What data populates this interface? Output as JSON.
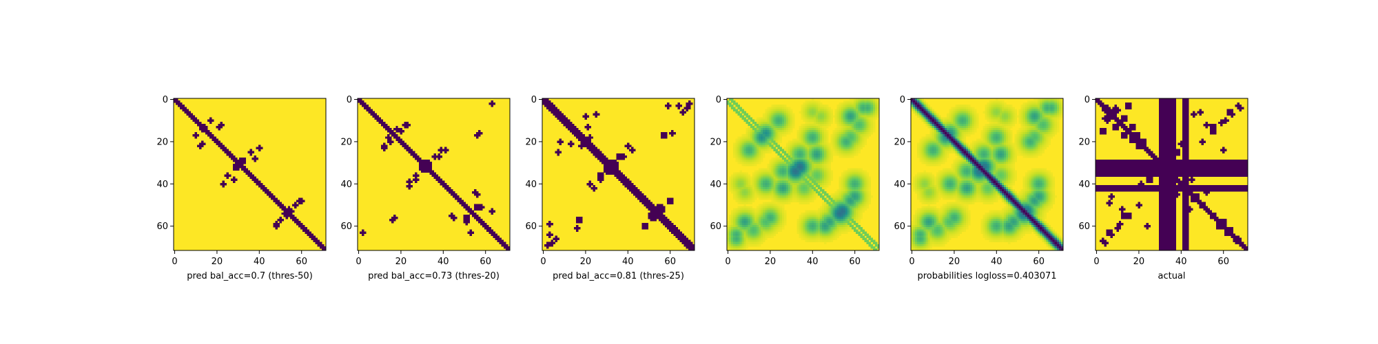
{
  "chart_data": [
    {
      "type": "heatmap",
      "kind": "binary",
      "title": "",
      "xlabel": "pred bal_acc=0.7 (thres-50)",
      "ylabel": "",
      "size": 72,
      "xlim": [
        0,
        72
      ],
      "ylim": [
        72,
        0
      ],
      "xticks": [
        "0",
        "20",
        "40",
        "60"
      ],
      "yticks": [
        "0",
        "20",
        "40",
        "60"
      ],
      "diag_halfwidth": 1.5,
      "bands": [],
      "blobs": [
        {
          "r": 12,
          "c": 22,
          "rad": 1.2
        },
        {
          "r": 13,
          "c": 14,
          "rad": 1.1
        },
        {
          "r": 17,
          "c": 10,
          "rad": 1.0
        },
        {
          "r": 21,
          "c": 13,
          "rad": 1.0
        },
        {
          "r": 32,
          "c": 29,
          "rad": 1.8
        },
        {
          "r": 25,
          "c": 36,
          "rad": 1.0
        },
        {
          "r": 28,
          "c": 38,
          "rad": 1.0
        },
        {
          "r": 36,
          "c": 25,
          "rad": 1.1
        },
        {
          "r": 40,
          "c": 23,
          "rad": 1.0
        },
        {
          "r": 53,
          "c": 54,
          "rad": 2.0
        },
        {
          "r": 48,
          "c": 59,
          "rad": 1.0
        },
        {
          "r": 57,
          "c": 50,
          "rad": 1.0
        },
        {
          "r": 60,
          "c": 48,
          "rad": 1.0
        }
      ]
    },
    {
      "type": "heatmap",
      "kind": "binary",
      "title": "",
      "xlabel": "pred bal_acc=0.73 (thres-20)",
      "ylabel": "",
      "size": 72,
      "xlim": [
        0,
        72
      ],
      "ylim": [
        72,
        0
      ],
      "xticks": [
        "0",
        "20",
        "40",
        "60"
      ],
      "yticks": [
        "0",
        "20",
        "40",
        "60"
      ],
      "diag_halfwidth": 1.5,
      "bands": [],
      "blobs": [
        {
          "r": 15,
          "c": 20,
          "rad": 1.0
        },
        {
          "r": 12,
          "c": 23,
          "rad": 1.0
        },
        {
          "r": 18,
          "c": 14,
          "rad": 1.2
        },
        {
          "r": 22,
          "c": 12,
          "rad": 1.0
        },
        {
          "r": 31,
          "c": 32,
          "rad": 2.6
        },
        {
          "r": 27,
          "c": 38,
          "rad": 1.0
        },
        {
          "r": 24,
          "c": 41,
          "rad": 1.0
        },
        {
          "r": 36,
          "c": 27,
          "rad": 1.2
        },
        {
          "r": 39,
          "c": 24,
          "rad": 1.0
        },
        {
          "r": 16,
          "c": 57,
          "rad": 1.0
        },
        {
          "r": 44,
          "c": 55,
          "rad": 1.2
        },
        {
          "r": 51,
          "c": 56,
          "rad": 1.5
        },
        {
          "r": 56,
          "c": 45,
          "rad": 1.1
        },
        {
          "r": 58,
          "c": 51,
          "rad": 1.0
        },
        {
          "r": 63,
          "c": 53,
          "rad": 1.0
        },
        {
          "r": 56,
          "c": 17,
          "rad": 1.0
        },
        {
          "r": 63,
          "c": 2,
          "rad": 1.0
        }
      ]
    },
    {
      "type": "heatmap",
      "kind": "binary",
      "title": "",
      "xlabel": "pred bal_acc=0.81 (thres-25)",
      "ylabel": "",
      "size": 72,
      "xlim": [
        0,
        72
      ],
      "ylim": [
        72,
        0
      ],
      "xticks": [
        "0",
        "20",
        "40",
        "60"
      ],
      "yticks": [
        "0",
        "20",
        "40",
        "60"
      ],
      "diag_halfwidth": 2.5,
      "bands": [],
      "blobs": [
        {
          "r": 8,
          "c": 20,
          "rad": 1.4
        },
        {
          "r": 7,
          "c": 25,
          "rad": 1.0
        },
        {
          "r": 16,
          "c": 16,
          "rad": 2.2
        },
        {
          "r": 18,
          "c": 22,
          "rad": 1.3
        },
        {
          "r": 21,
          "c": 13,
          "rad": 1.1
        },
        {
          "r": 31,
          "c": 33,
          "rad": 2.4
        },
        {
          "r": 27,
          "c": 38,
          "rad": 1.3
        },
        {
          "r": 24,
          "c": 42,
          "rad": 1.2
        },
        {
          "r": 36,
          "c": 27,
          "rad": 1.5
        },
        {
          "r": 40,
          "c": 22,
          "rad": 1.3
        },
        {
          "r": 3,
          "c": 64,
          "rad": 1.2
        },
        {
          "r": 2,
          "c": 69,
          "rad": 1.0
        },
        {
          "r": 17,
          "c": 57,
          "rad": 1.4
        },
        {
          "r": 48,
          "c": 60,
          "rad": 1.5
        },
        {
          "r": 52,
          "c": 56,
          "rad": 1.8
        },
        {
          "r": 55,
          "c": 51,
          "rad": 1.5
        },
        {
          "r": 57,
          "c": 17,
          "rad": 1.8
        },
        {
          "r": 61,
          "c": 16,
          "rad": 1.0
        },
        {
          "r": 59,
          "c": 3,
          "rad": 1.3
        },
        {
          "r": 68,
          "c": 4,
          "rad": 1.0
        },
        {
          "r": 66,
          "c": 6,
          "rad": 1.0
        }
      ]
    },
    {
      "type": "heatmap",
      "kind": "continuous",
      "title": "",
      "xlabel": "",
      "ylabel": "",
      "size": 72,
      "xlim": [
        0,
        72
      ],
      "ylim": [
        72,
        0
      ],
      "xticks": [
        "0",
        "20",
        "40",
        "60"
      ],
      "yticks": [
        "0",
        "20",
        "40",
        "60"
      ],
      "offset_lines": [
        -1.5,
        1.5
      ],
      "offset_strength": 0.55,
      "diag_halfwidth": 0,
      "spots": [
        {
          "r": 16,
          "c": 18,
          "rad": 3.5,
          "v": 0.6
        },
        {
          "r": 10,
          "c": 24,
          "rad": 3.5,
          "v": 0.5
        },
        {
          "r": 32,
          "c": 34,
          "rad": 4.0,
          "v": 0.7
        },
        {
          "r": 26,
          "c": 42,
          "rad": 3.5,
          "v": 0.55
        },
        {
          "r": 34,
          "c": 26,
          "rad": 3.5,
          "v": 0.5
        },
        {
          "r": 40,
          "c": 18,
          "rad": 3.5,
          "v": 0.5
        },
        {
          "r": 53,
          "c": 54,
          "rad": 4.0,
          "v": 0.7
        },
        {
          "r": 46,
          "c": 60,
          "rad": 3.5,
          "v": 0.55
        },
        {
          "r": 58,
          "c": 48,
          "rad": 3.5,
          "v": 0.55
        },
        {
          "r": 60,
          "c": 40,
          "rad": 3.5,
          "v": 0.5
        },
        {
          "r": 8,
          "c": 58,
          "rad": 3.5,
          "v": 0.55
        },
        {
          "r": 4,
          "c": 66,
          "rad": 3.0,
          "v": 0.5
        },
        {
          "r": 18,
          "c": 58,
          "rad": 3.5,
          "v": 0.45
        },
        {
          "r": 42,
          "c": 36,
          "rad": 3.5,
          "v": 0.4
        },
        {
          "r": 56,
          "c": 20,
          "rad": 3.5,
          "v": 0.5
        },
        {
          "r": 62,
          "c": 12,
          "rad": 3.5,
          "v": 0.45
        },
        {
          "r": 64,
          "c": 4,
          "rad": 3.0,
          "v": 0.5
        },
        {
          "r": 8,
          "c": 44,
          "rad": 3.0,
          "v": 0.3
        },
        {
          "r": 40,
          "c": 6,
          "rad": 3.0,
          "v": 0.3
        }
      ]
    },
    {
      "type": "heatmap",
      "kind": "continuous",
      "title": "",
      "xlabel": "probabilities logloss=0.403071",
      "ylabel": "",
      "size": 72,
      "xlim": [
        0,
        72
      ],
      "ylim": [
        72,
        0
      ],
      "xticks": [
        "0",
        "20",
        "40",
        "60"
      ],
      "yticks": [
        "0",
        "20",
        "40",
        "60"
      ],
      "offset_lines": [],
      "offset_strength": 0,
      "diag_halfwidth": 2.2,
      "spots": [
        {
          "r": 16,
          "c": 18,
          "rad": 3.5,
          "v": 0.6
        },
        {
          "r": 10,
          "c": 24,
          "rad": 3.5,
          "v": 0.5
        },
        {
          "r": 32,
          "c": 34,
          "rad": 4.0,
          "v": 0.7
        },
        {
          "r": 26,
          "c": 42,
          "rad": 3.5,
          "v": 0.55
        },
        {
          "r": 34,
          "c": 26,
          "rad": 3.5,
          "v": 0.5
        },
        {
          "r": 40,
          "c": 18,
          "rad": 3.5,
          "v": 0.5
        },
        {
          "r": 53,
          "c": 54,
          "rad": 4.0,
          "v": 0.7
        },
        {
          "r": 46,
          "c": 60,
          "rad": 3.5,
          "v": 0.55
        },
        {
          "r": 58,
          "c": 48,
          "rad": 3.5,
          "v": 0.55
        },
        {
          "r": 60,
          "c": 40,
          "rad": 3.5,
          "v": 0.5
        },
        {
          "r": 8,
          "c": 58,
          "rad": 3.5,
          "v": 0.55
        },
        {
          "r": 4,
          "c": 66,
          "rad": 3.0,
          "v": 0.5
        },
        {
          "r": 18,
          "c": 58,
          "rad": 3.5,
          "v": 0.45
        },
        {
          "r": 42,
          "c": 36,
          "rad": 3.5,
          "v": 0.4
        },
        {
          "r": 56,
          "c": 20,
          "rad": 3.5,
          "v": 0.5
        },
        {
          "r": 62,
          "c": 12,
          "rad": 3.5,
          "v": 0.45
        },
        {
          "r": 64,
          "c": 4,
          "rad": 3.0,
          "v": 0.5
        },
        {
          "r": 8,
          "c": 44,
          "rad": 3.0,
          "v": 0.3
        },
        {
          "r": 40,
          "c": 6,
          "rad": 3.0,
          "v": 0.3
        }
      ]
    },
    {
      "type": "heatmap",
      "kind": "binary",
      "title": "",
      "xlabel": "actual",
      "ylabel": "",
      "size": 72,
      "xlim": [
        0,
        72
      ],
      "ylim": [
        72,
        0
      ],
      "xticks": [
        "0",
        "20",
        "40",
        "60"
      ],
      "yticks": [
        "0",
        "20",
        "40",
        "60"
      ],
      "diag_halfwidth": 1.5,
      "bands": [
        {
          "axis": "col",
          "from": 30,
          "to": 37
        },
        {
          "axis": "col",
          "from": 41,
          "to": 43
        },
        {
          "axis": "row",
          "from": 29,
          "to": 36
        },
        {
          "axis": "row",
          "from": 41,
          "to": 43
        }
      ],
      "blobs": [
        {
          "r": 5,
          "c": 9,
          "rad": 2.2
        },
        {
          "r": 3,
          "c": 15,
          "rad": 1.6
        },
        {
          "r": 9,
          "c": 13,
          "rad": 1.6
        },
        {
          "r": 13,
          "c": 17,
          "rad": 1.8
        },
        {
          "r": 17,
          "c": 19,
          "rad": 1.5
        },
        {
          "r": 20,
          "c": 22,
          "rad": 1.5
        },
        {
          "r": 5,
          "c": 4,
          "rad": 1.2
        },
        {
          "r": 7,
          "c": 46,
          "rad": 1.3
        },
        {
          "r": 15,
          "c": 55,
          "rad": 1.6
        },
        {
          "r": 12,
          "c": 52,
          "rad": 1.2
        },
        {
          "r": 20,
          "c": 50,
          "rad": 1.2
        },
        {
          "r": 7,
          "c": 64,
          "rad": 1.3
        },
        {
          "r": 4,
          "c": 68,
          "rad": 1.2
        },
        {
          "r": 10,
          "c": 61,
          "rad": 1.2
        },
        {
          "r": 38,
          "c": 25,
          "rad": 1.5
        },
        {
          "r": 40,
          "c": 21,
          "rad": 1.3
        },
        {
          "r": 47,
          "c": 46,
          "rad": 1.8
        },
        {
          "r": 50,
          "c": 50,
          "rad": 1.5
        },
        {
          "r": 55,
          "c": 55,
          "rad": 1.6
        },
        {
          "r": 58,
          "c": 60,
          "rad": 1.5
        },
        {
          "r": 62,
          "c": 63,
          "rad": 1.5
        },
        {
          "r": 66,
          "c": 67,
          "rad": 1.4
        },
        {
          "r": 52,
          "c": 44,
          "rad": 1.3
        },
        {
          "r": 49,
          "c": 6,
          "rad": 1.3
        },
        {
          "r": 55,
          "c": 13,
          "rad": 1.5
        },
        {
          "r": 63,
          "c": 6,
          "rad": 1.8
        },
        {
          "r": 67,
          "c": 3,
          "rad": 1.4
        },
        {
          "r": 59,
          "c": 11,
          "rad": 1.2
        },
        {
          "r": 45,
          "c": 38,
          "rad": 1.2
        },
        {
          "r": 24,
          "c": 60,
          "rad": 1.0
        }
      ]
    }
  ]
}
